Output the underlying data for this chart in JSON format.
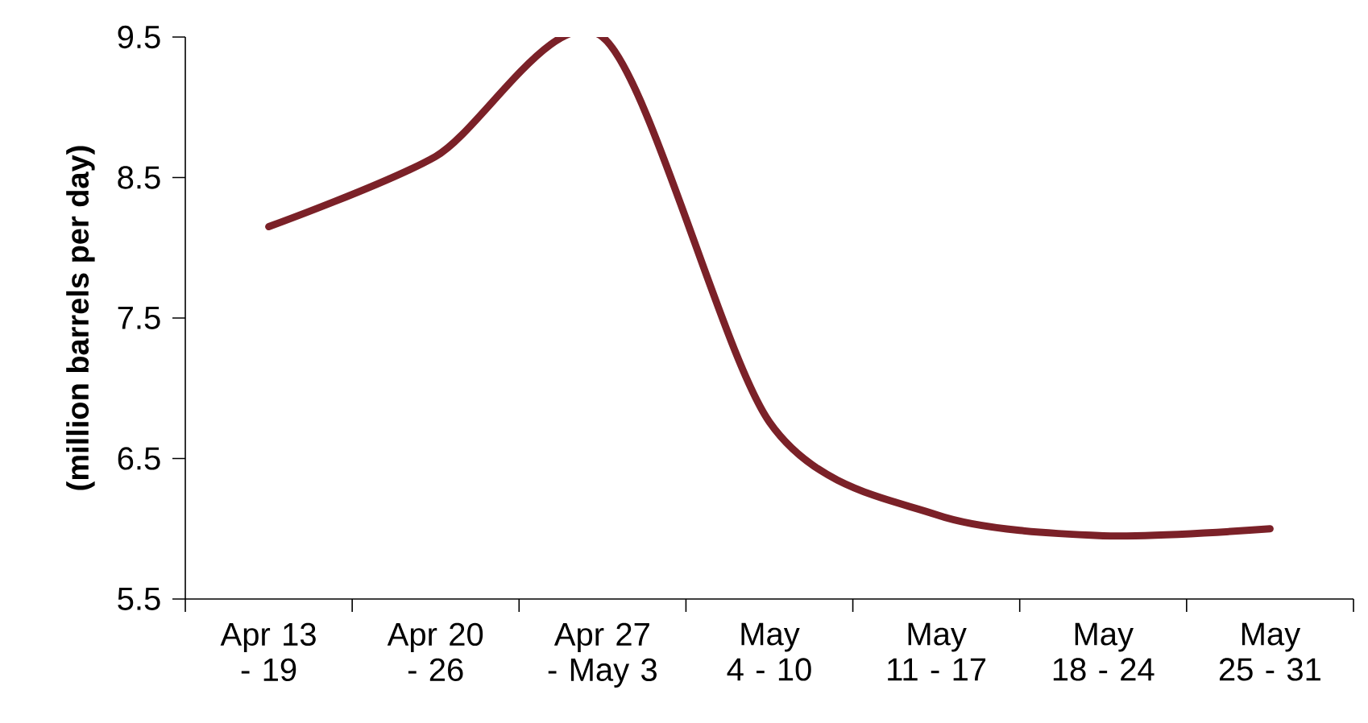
{
  "chart_data": {
    "type": "line",
    "ylabel": "(million  barrels per day)",
    "categories": [
      "Apr 13 - 19",
      "Apr 20 - 26",
      "Apr 27 - May 3",
      "May 4 - 10",
      "May 11 - 17",
      "May 18 - 24",
      "May 25 - 31"
    ],
    "series": [
      {
        "color": "#7b2128",
        "values": [
          8.15,
          8.65,
          9.5,
          6.76,
          6.1,
          5.95,
          6.0
        ]
      }
    ],
    "ylim": [
      5.5,
      9.5
    ],
    "yticks": [
      5.5,
      6.5,
      7.5,
      8.5,
      9.5
    ],
    "grid": false,
    "marker": "none",
    "line_style": "solid"
  }
}
